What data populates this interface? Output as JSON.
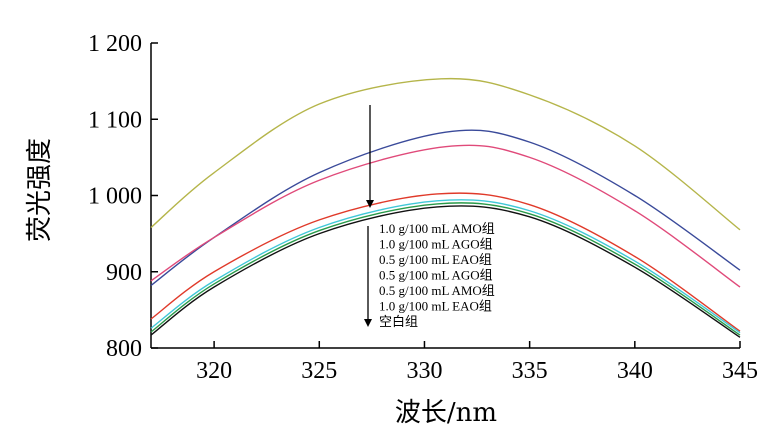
{
  "chart_data": {
    "type": "line",
    "title": "",
    "xlabel": "波长/nm",
    "ylabel": "荧光强度",
    "xlim": [
      317,
      345
    ],
    "ylim": [
      800,
      1200
    ],
    "xticks": [
      320,
      325,
      330,
      335,
      340,
      345
    ],
    "xtick_labels": [
      "320",
      "325",
      "330",
      "335",
      "340",
      "345"
    ],
    "yticks": [
      800,
      900,
      1000,
      1100,
      1200
    ],
    "ytick_labels": [
      "800",
      "900",
      "1 000",
      "1 100",
      "1 200"
    ],
    "grid": false,
    "legend_placement": "center",
    "legend_order": [
      "1.0 g/100 mL AMO组",
      "1.0 g/100 mL AGO组",
      "0.5 g/100 mL EAO组",
      "0.5 g/100 mL AGO组",
      "0.5 g/100 mL AMO组",
      "1.0 g/100 mL EAO组",
      "空白组"
    ],
    "arrow_note": "arrows indicate decreasing intensity",
    "series": [
      {
        "color": "#b5b54a",
        "peak_x": 330.8,
        "points": [
          [
            317,
            958
          ],
          [
            320,
            1030
          ],
          [
            325,
            1120
          ],
          [
            330.8,
            1153
          ],
          [
            335,
            1132
          ],
          [
            340,
            1065
          ],
          [
            345,
            955
          ]
        ]
      },
      {
        "color": "#3a4a9a",
        "peak_x": 331,
        "points": [
          [
            317,
            882
          ],
          [
            320,
            945
          ],
          [
            325,
            1030
          ],
          [
            331,
            1083
          ],
          [
            335,
            1070
          ],
          [
            340,
            1000
          ],
          [
            345,
            902
          ]
        ]
      },
      {
        "color": "#e04a7a",
        "peak_x": 331,
        "points": [
          [
            317,
            888
          ],
          [
            320,
            945
          ],
          [
            325,
            1020
          ],
          [
            331,
            1064
          ],
          [
            335,
            1050
          ],
          [
            340,
            980
          ],
          [
            345,
            880
          ]
        ]
      },
      {
        "color": "#e03a2a",
        "peak_x": 330.6,
        "points": [
          [
            317,
            838
          ],
          [
            320,
            900
          ],
          [
            325,
            968
          ],
          [
            330.6,
            1002
          ],
          [
            335,
            988
          ],
          [
            340,
            920
          ],
          [
            345,
            822
          ]
        ]
      },
      {
        "color": "#40c8d8",
        "peak_x": 330.6,
        "points": [
          [
            317,
            826
          ],
          [
            320,
            888
          ],
          [
            325,
            958
          ],
          [
            330.6,
            993
          ],
          [
            335,
            980
          ],
          [
            340,
            914
          ],
          [
            345,
            820
          ]
        ]
      },
      {
        "color": "#2a9a4a",
        "peak_x": 330.6,
        "points": [
          [
            317,
            821
          ],
          [
            320,
            884
          ],
          [
            325,
            954
          ],
          [
            330.6,
            989
          ],
          [
            335,
            976
          ],
          [
            340,
            910
          ],
          [
            345,
            817
          ]
        ]
      },
      {
        "color": "#111111",
        "peak_x": 330.6,
        "points": [
          [
            317,
            817
          ],
          [
            320,
            880
          ],
          [
            325,
            950
          ],
          [
            330.6,
            985
          ],
          [
            335,
            972
          ],
          [
            340,
            906
          ],
          [
            345,
            814
          ]
        ]
      }
    ]
  }
}
